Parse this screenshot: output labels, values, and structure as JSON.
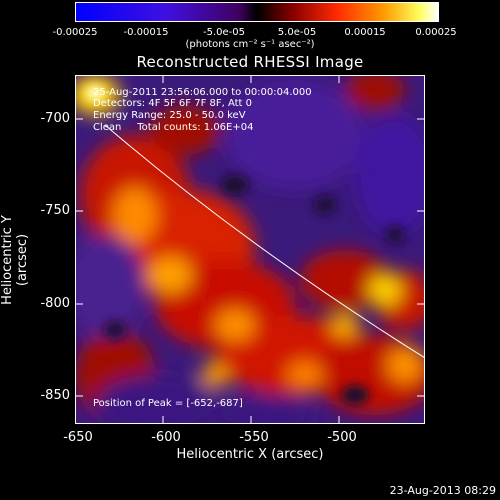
{
  "colorbar": {
    "ticks": [
      "-0.00025",
      "-0.00015",
      "-5.0e-05",
      "5.0e-05",
      "0.00015",
      "0.00025"
    ],
    "units": "(photons cm⁻² s⁻¹ asec⁻²)"
  },
  "title": "Reconstructed RHESSI Image",
  "annotations": {
    "time_range": "25-Aug-2011 23:56:06.000 to 00:00:04.000",
    "detectors": "Detectors: 4F 5F 6F 7F 8F, Att 0",
    "energy": "Energy Range: 25.0 - 50.0 keV",
    "algorithm": "Clean     Total counts: 1.06E+04",
    "peak": "Position of Peak = [-652,-687]"
  },
  "axes": {
    "xlabel": "Heliocentric X (arcsec)",
    "ylabel": "Heliocentric Y (arcsec)",
    "xticks": [
      "-650",
      "-600",
      "-550",
      "-500"
    ],
    "yticks": [
      "-700",
      "-750",
      "-800",
      "-850"
    ]
  },
  "footer": {
    "date": "23-Aug-2013 08:29"
  },
  "colors": {
    "background": "#000000",
    "foreground": "#ffffff"
  }
}
